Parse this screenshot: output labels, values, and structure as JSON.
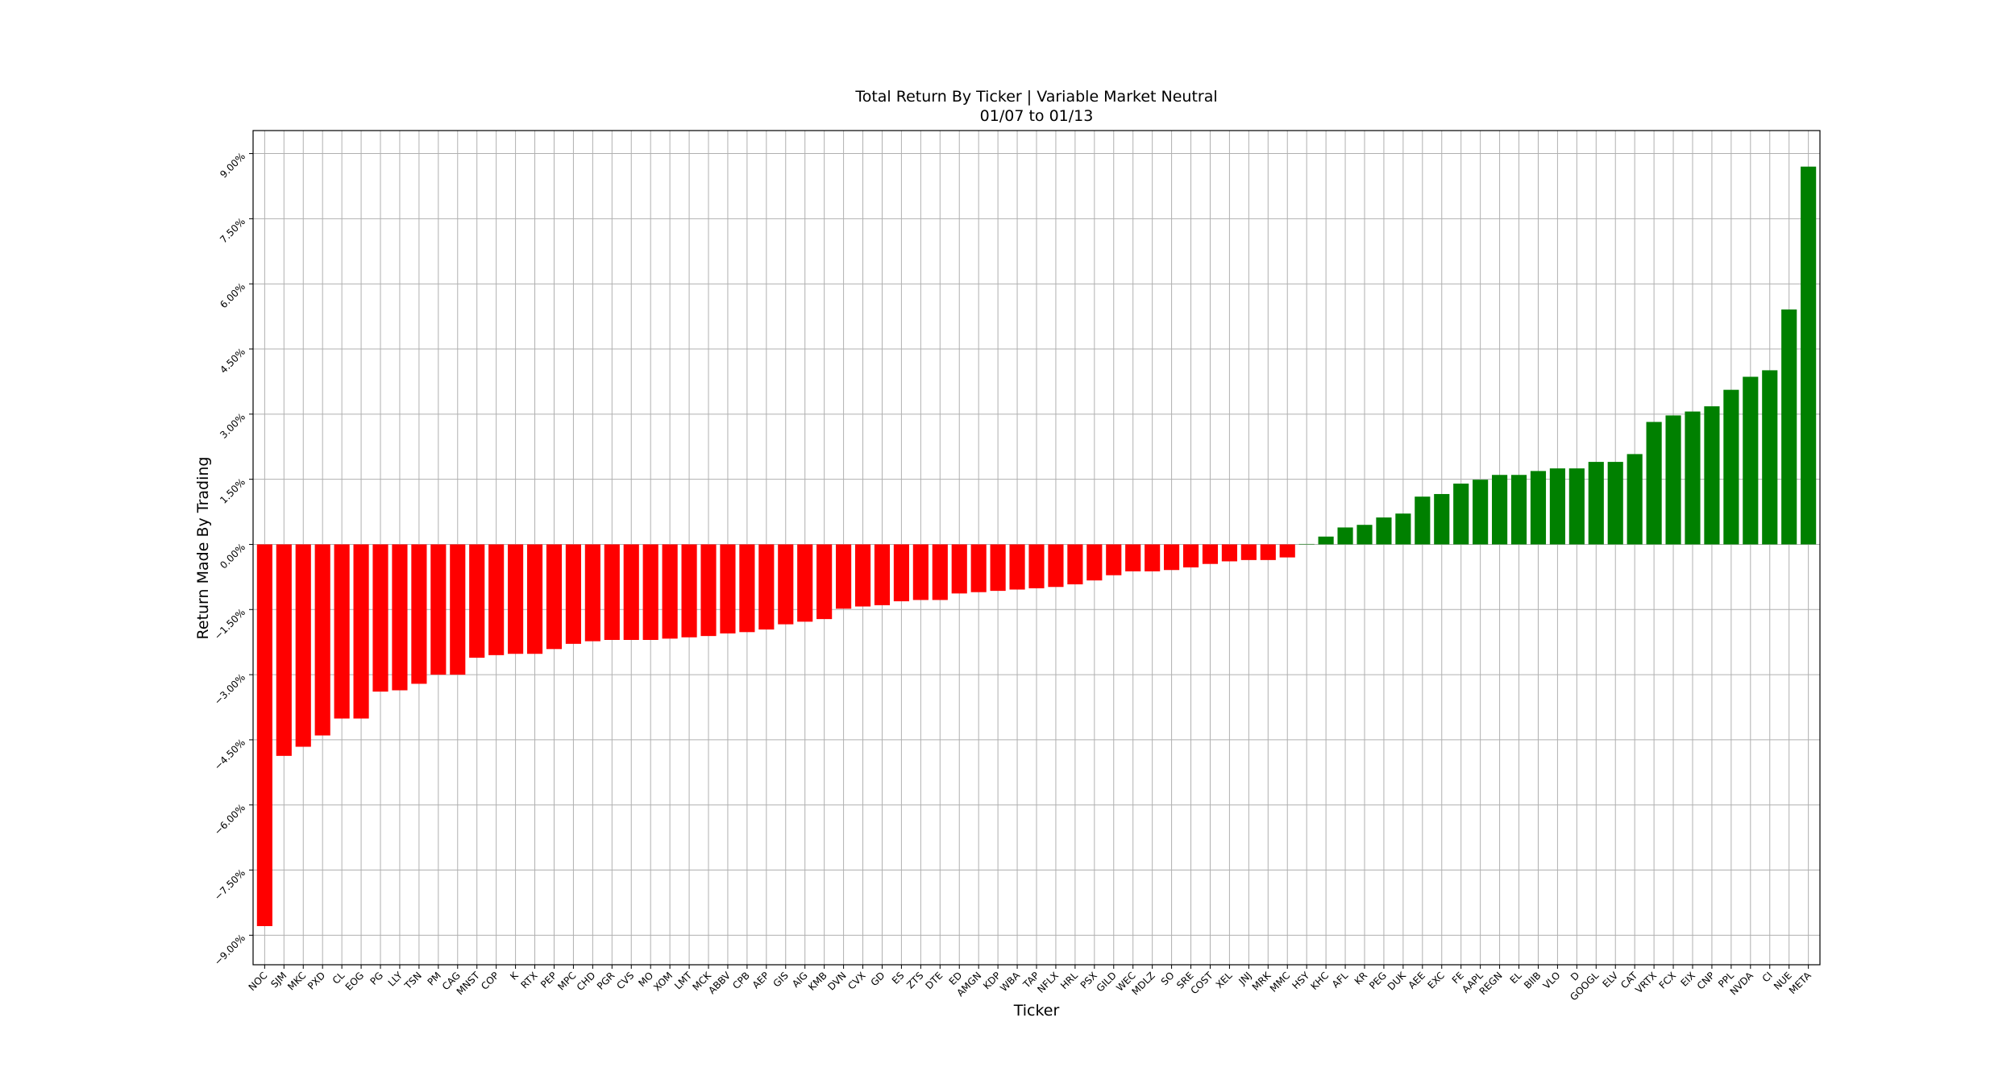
{
  "chart_data": {
    "type": "bar",
    "title": "Total Return By Ticker | Variable Market Neutral",
    "subtitle": "01/07 to 01/13",
    "x_label": "Ticker",
    "y_label": "Return Made By Trading",
    "categories": [
      "NOC",
      "SJM",
      "MKC",
      "PXD",
      "CL",
      "EOG",
      "PG",
      "LLY",
      "TSN",
      "PM",
      "CAG",
      "MNST",
      "COP",
      "K",
      "RTX",
      "PEP",
      "MPC",
      "CHD",
      "PGR",
      "CVS",
      "MO",
      "XOM",
      "LMT",
      "MCK",
      "ABBV",
      "CPB",
      "AEP",
      "GIS",
      "AIG",
      "KMB",
      "DVN",
      "CVX",
      "GD",
      "ES",
      "ZTS",
      "DTE",
      "ED",
      "AMGN",
      "KDP",
      "WBA",
      "TAP",
      "NFLX",
      "HRL",
      "PSX",
      "GILD",
      "WEC",
      "MDLZ",
      "SO",
      "SRE",
      "COST",
      "XEL",
      "JNJ",
      "MRK",
      "MMC",
      "HSY",
      "KHC",
      "AFL",
      "KR",
      "PEG",
      "DUK",
      "AEE",
      "EXC",
      "FE",
      "AAPL",
      "REGN",
      "EL",
      "BIIB",
      "VLO",
      "D",
      "GOOGL",
      "ELV",
      "CAT",
      "VRTX",
      "FCX",
      "EIX",
      "CNP",
      "PPL",
      "NVDA",
      "CI",
      "NUE",
      "META"
    ],
    "values": [
      -8.79,
      -4.87,
      -4.66,
      -4.4,
      -4.01,
      -4.01,
      -3.39,
      -3.36,
      -3.21,
      -3.0,
      -3.0,
      -2.61,
      -2.55,
      -2.52,
      -2.52,
      -2.41,
      -2.29,
      -2.23,
      -2.2,
      -2.2,
      -2.2,
      -2.17,
      -2.14,
      -2.11,
      -2.05,
      -2.02,
      -1.96,
      -1.84,
      -1.78,
      -1.72,
      -1.48,
      -1.43,
      -1.4,
      -1.31,
      -1.28,
      -1.28,
      -1.13,
      -1.1,
      -1.07,
      -1.04,
      -1.01,
      -0.98,
      -0.92,
      -0.83,
      -0.71,
      -0.62,
      -0.62,
      -0.59,
      -0.53,
      -0.45,
      -0.39,
      -0.36,
      -0.36,
      -0.3,
      0.01,
      0.18,
      0.39,
      0.45,
      0.62,
      0.71,
      1.1,
      1.16,
      1.4,
      1.49,
      1.6,
      1.6,
      1.69,
      1.75,
      1.75,
      1.9,
      1.9,
      2.08,
      2.82,
      2.97,
      3.06,
      3.18,
      3.56,
      3.86,
      4.01,
      5.41,
      8.7
    ],
    "negative_color": "#ff0000",
    "positive_color": "#008000",
    "ylim": [
      -9.68,
      9.53
    ],
    "yticks": [
      {
        "value": -9,
        "label": "−9.00%"
      },
      {
        "value": -7.5,
        "label": "−7.50%"
      },
      {
        "value": -6,
        "label": "−6.00%"
      },
      {
        "value": -4.5,
        "label": "−4.50%"
      },
      {
        "value": -3,
        "label": "−3.00%"
      },
      {
        "value": -1.5,
        "label": "−1.50%"
      },
      {
        "value": 0,
        "label": "0.00%"
      },
      {
        "value": 1.5,
        "label": "1.50%"
      },
      {
        "value": 3,
        "label": "3.00%"
      },
      {
        "value": 4.5,
        "label": "4.50%"
      },
      {
        "value": 6,
        "label": "6.00%"
      },
      {
        "value": 7.5,
        "label": "7.50%"
      },
      {
        "value": 9,
        "label": "9.00%"
      }
    ],
    "grid": true
  }
}
